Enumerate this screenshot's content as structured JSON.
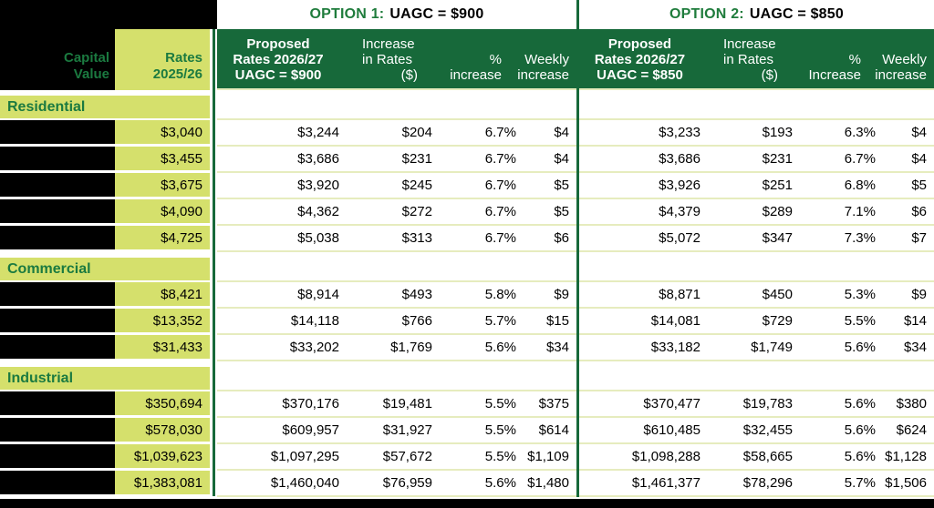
{
  "colors": {
    "dark_green": "#17693A",
    "light_green": "#D5E06C",
    "grid_line": "#E6ECBE",
    "title_green": "#1F7C3C",
    "text_green": "#1B7A40",
    "black": "#000000"
  },
  "left_header": {
    "capital_value": "Capital\nValue",
    "rates": "Rates\n2025/26"
  },
  "options": [
    {
      "title_prefix": "OPTION 1:",
      "title_suffix": "UAGC = $900",
      "proposed": "Proposed\nRates 2026/27\nUAGC = $900",
      "increase_lines": "Increase\nin Rates",
      "increase_paren": "($)",
      "percent": "%\nincrease",
      "weekly": "Weekly\nincrease"
    },
    {
      "title_prefix": "OPTION 2:",
      "title_suffix": "UAGC = $850",
      "proposed": "Proposed\nRates 2026/27\nUAGC = $850",
      "increase_lines": "Increase\nin Rates",
      "increase_paren": "($)",
      "percent": "%\nIncrease",
      "weekly": "Weekly\nincrease"
    }
  ],
  "sections": [
    {
      "name": "Residential",
      "rows": [
        {
          "rates": "$3,040",
          "opt1": [
            "$3,244",
            "$204",
            "6.7%",
            "$4"
          ],
          "opt2": [
            "$3,233",
            "$193",
            "6.3%",
            "$4"
          ]
        },
        {
          "rates": "$3,455",
          "opt1": [
            "$3,686",
            "$231",
            "6.7%",
            "$4"
          ],
          "opt2": [
            "$3,686",
            "$231",
            "6.7%",
            "$4"
          ]
        },
        {
          "rates": "$3,675",
          "opt1": [
            "$3,920",
            "$245",
            "6.7%",
            "$5"
          ],
          "opt2": [
            "$3,926",
            "$251",
            "6.8%",
            "$5"
          ]
        },
        {
          "rates": "$4,090",
          "opt1": [
            "$4,362",
            "$272",
            "6.7%",
            "$5"
          ],
          "opt2": [
            "$4,379",
            "$289",
            "7.1%",
            "$6"
          ]
        },
        {
          "rates": "$4,725",
          "opt1": [
            "$5,038",
            "$313",
            "6.7%",
            "$6"
          ],
          "opt2": [
            "$5,072",
            "$347",
            "7.3%",
            "$7"
          ]
        }
      ]
    },
    {
      "name": "Commercial",
      "rows": [
        {
          "rates": "$8,421",
          "opt1": [
            "$8,914",
            "$493",
            "5.8%",
            "$9"
          ],
          "opt2": [
            "$8,871",
            "$450",
            "5.3%",
            "$9"
          ]
        },
        {
          "rates": "$13,352",
          "opt1": [
            "$14,118",
            "$766",
            "5.7%",
            "$15"
          ],
          "opt2": [
            "$14,081",
            "$729",
            "5.5%",
            "$14"
          ]
        },
        {
          "rates": "$31,433",
          "opt1": [
            "$33,202",
            "$1,769",
            "5.6%",
            "$34"
          ],
          "opt2": [
            "$33,182",
            "$1,749",
            "5.6%",
            "$34"
          ]
        }
      ]
    },
    {
      "name": "Industrial",
      "rows": [
        {
          "rates": "$350,694",
          "opt1": [
            "$370,176",
            "$19,481",
            "5.5%",
            "$375"
          ],
          "opt2": [
            "$370,477",
            "$19,783",
            "5.6%",
            "$380"
          ]
        },
        {
          "rates": "$578,030",
          "opt1": [
            "$609,957",
            "$31,927",
            "5.5%",
            "$614"
          ],
          "opt2": [
            "$610,485",
            "$32,455",
            "5.6%",
            "$624"
          ]
        },
        {
          "rates": "$1,039,623",
          "opt1": [
            "$1,097,295",
            "$57,672",
            "5.5%",
            "$1,109"
          ],
          "opt2": [
            "$1,098,288",
            "$58,665",
            "5.6%",
            "$1,128"
          ]
        },
        {
          "rates": "$1,383,081",
          "opt1": [
            "$1,460,040",
            "$76,959",
            "5.6%",
            "$1,480"
          ],
          "opt2": [
            "$1,461,377",
            "$78,296",
            "5.7%",
            "$1,506"
          ]
        }
      ]
    }
  ]
}
